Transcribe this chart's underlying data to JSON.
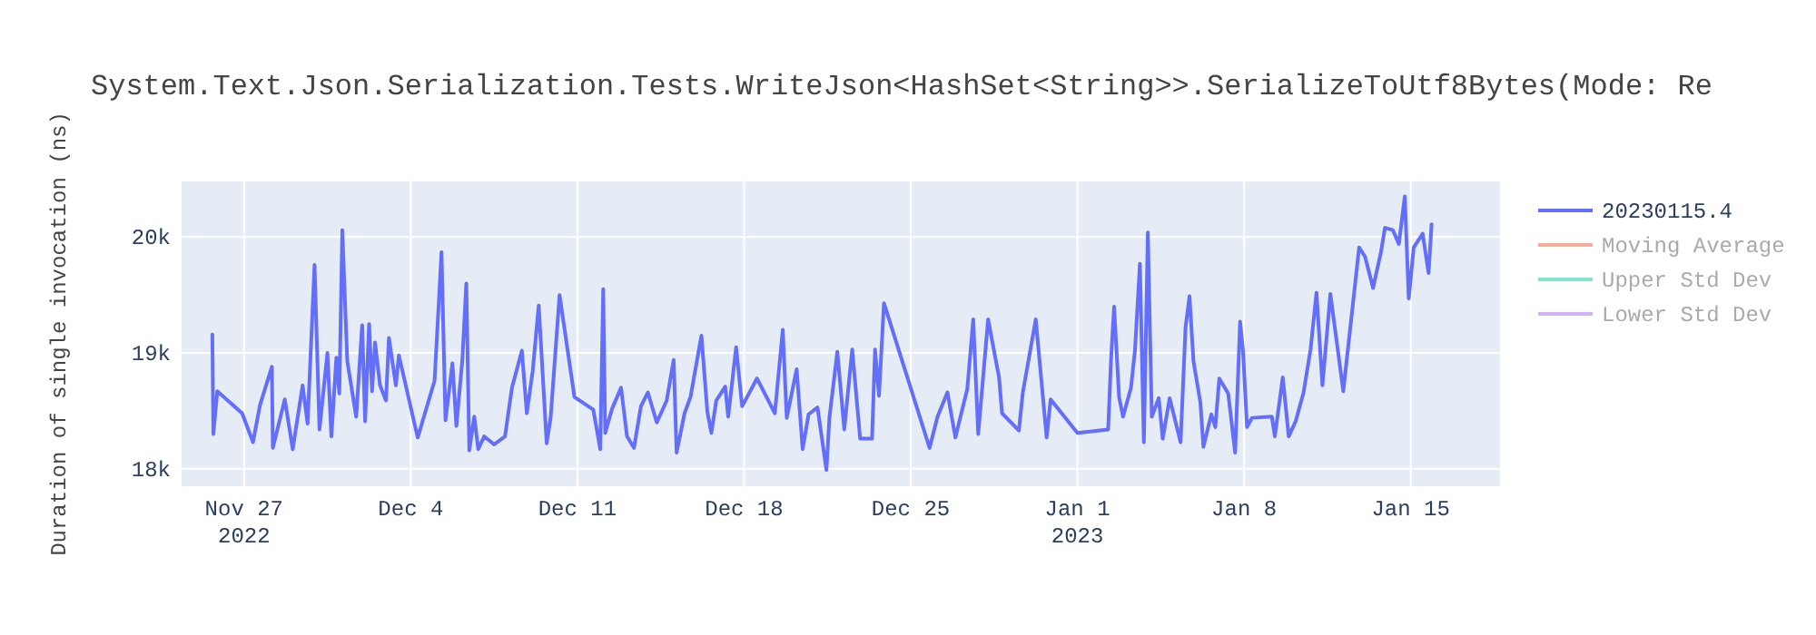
{
  "chart_data": {
    "type": "line",
    "title": "System.Text.Json.Serialization.Tests.WriteJson<HashSet<String>>.SerializeToUtf8Bytes(Mode: Re",
    "ylabel": "Duration of single invocation (ns)",
    "xlim": [
      "2022-11-24T09:00",
      "2023-01-18T18:00"
    ],
    "xticks": [
      {
        "value": "2022-11-27",
        "label": "Nov 27\n2022"
      },
      {
        "value": "2022-12-04",
        "label": "Dec 4"
      },
      {
        "value": "2022-12-11",
        "label": "Dec 11"
      },
      {
        "value": "2022-12-18",
        "label": "Dec 18"
      },
      {
        "value": "2022-12-25",
        "label": "Dec 25"
      },
      {
        "value": "2023-01-01",
        "label": "Jan 1\n2023"
      },
      {
        "value": "2023-01-08",
        "label": "Jan 8"
      },
      {
        "value": "2023-01-15",
        "label": "Jan 15"
      }
    ],
    "ylim": [
      17850,
      20480
    ],
    "yticks": [
      {
        "value": 18000,
        "label": "18k"
      },
      {
        "value": 19000,
        "label": "19k"
      },
      {
        "value": 20000,
        "label": "20k"
      }
    ],
    "grid": true,
    "legend": "right",
    "series": [
      {
        "name": "20230115.4",
        "color": "#636efa",
        "x": [
          "2022-11-25T16:00",
          "2022-11-25T17:00",
          "2022-11-25T21:00",
          "2022-11-26T22:00",
          "2022-11-27T09:00",
          "2022-11-27T16:00",
          "2022-11-28T04:00",
          "2022-11-28T05:00",
          "2022-11-28T17:00",
          "2022-11-29T01:00",
          "2022-11-29T11:00",
          "2022-11-29T16:00",
          "2022-11-29T23:00",
          "2022-11-30T04:00",
          "2022-11-30T12:00",
          "2022-11-30T16:00",
          "2022-11-30T21:00",
          "2022-12-01T00:00",
          "2022-12-01T03:00",
          "2022-12-01T08:00",
          "2022-12-01T17:00",
          "2022-12-01T23:00",
          "2022-12-02T02:00",
          "2022-12-02T06:00",
          "2022-12-02T09:00",
          "2022-12-02T12:00",
          "2022-12-02T17:00",
          "2022-12-02T23:00",
          "2022-12-03T02:00",
          "2022-12-03T09:00",
          "2022-12-03T12:00",
          "2022-12-04T07:00",
          "2022-12-05T00:00",
          "2022-12-05T07:00",
          "2022-12-05T11:00",
          "2022-12-05T18:00",
          "2022-12-05T22:00",
          "2022-12-06T04:00",
          "2022-12-06T08:00",
          "2022-12-06T11:00",
          "2022-12-06T16:00",
          "2022-12-06T20:00",
          "2022-12-07T02:00",
          "2022-12-07T12:00",
          "2022-12-07T23:00",
          "2022-12-08T06:00",
          "2022-12-08T16:00",
          "2022-12-08T21:00",
          "2022-12-09T03:00",
          "2022-12-09T09:00",
          "2022-12-09T17:00",
          "2022-12-09T21:00",
          "2022-12-10T06:00",
          "2022-12-10T21:00",
          "2022-12-11T16:00",
          "2022-12-11T23:00",
          "2022-12-12T02:00",
          "2022-12-12T04:00",
          "2022-12-12T11:00",
          "2022-12-12T20:00",
          "2022-12-13T02:00",
          "2022-12-13T09:00",
          "2022-12-13T16:00",
          "2022-12-13T23:00",
          "2022-12-14T08:00",
          "2022-12-14T18:00",
          "2022-12-15T01:00",
          "2022-12-15T04:00",
          "2022-12-15T12:00",
          "2022-12-15T18:00",
          "2022-12-16T05:00",
          "2022-12-16T11:00",
          "2022-12-16T15:00",
          "2022-12-16T20:00",
          "2022-12-17T05:00",
          "2022-12-17T08:00",
          "2022-12-17T16:00",
          "2022-12-17T22:00",
          "2022-12-18T13:00",
          "2022-12-19T07:00",
          "2022-12-19T15:00",
          "2022-12-19T19:00",
          "2022-12-20T05:00",
          "2022-12-20T11:00",
          "2022-12-20T17:00",
          "2022-12-21T02:00",
          "2022-12-21T11:00",
          "2022-12-21T14:00",
          "2022-12-21T22:00",
          "2022-12-22T05:00",
          "2022-12-22T13:00",
          "2022-12-22T21:00",
          "2022-12-23T09:00",
          "2022-12-23T12:00",
          "2022-12-23T16:00",
          "2022-12-23T21:00",
          "2022-12-25T19:00",
          "2022-12-26T03:00",
          "2022-12-26T13:00",
          "2022-12-26T21:00",
          "2022-12-27T09:00",
          "2022-12-27T15:00",
          "2022-12-27T20:00",
          "2022-12-28T06:00",
          "2022-12-28T17:00",
          "2022-12-28T20:00",
          "2022-12-29T13:00",
          "2022-12-29T17:00",
          "2022-12-30T06:00",
          "2022-12-30T17:00",
          "2022-12-30T21:00",
          "2023-01-01T00:00",
          "2023-01-02T07:00",
          "2023-01-02T10:00",
          "2023-01-02T13:00",
          "2023-01-02T18:00",
          "2023-01-02T22:00",
          "2023-01-03T06:00",
          "2023-01-03T10:00",
          "2023-01-03T15:00",
          "2023-01-03T19:00",
          "2023-01-03T23:00",
          "2023-01-04T03:00",
          "2023-01-04T10:00",
          "2023-01-04T14:00",
          "2023-01-04T21:00",
          "2023-01-05T08:00",
          "2023-01-05T13:00",
          "2023-01-05T17:00",
          "2023-01-05T21:00",
          "2023-01-06T04:00",
          "2023-01-06T07:00",
          "2023-01-06T15:00",
          "2023-01-06T19:00",
          "2023-01-06T23:00",
          "2023-01-07T08:00",
          "2023-01-07T15:00",
          "2023-01-07T20:00",
          "2023-01-07T23:00",
          "2023-01-08T03:00",
          "2023-01-08T08:00",
          "2023-01-09T04:00",
          "2023-01-09T07:00",
          "2023-01-09T15:00",
          "2023-01-09T21:00",
          "2023-01-10T04:00",
          "2023-01-10T12:00",
          "2023-01-10T19:00",
          "2023-01-11T01:00",
          "2023-01-11T07:00",
          "2023-01-11T15:00",
          "2023-01-12T04:00",
          "2023-01-12T20:00",
          "2023-01-13T02:00",
          "2023-01-13T10:00",
          "2023-01-13T18:00",
          "2023-01-13T22:00",
          "2023-01-14T06:00",
          "2023-01-14T12:00",
          "2023-01-14T18:00",
          "2023-01-14T22:00",
          "2023-01-15T03:00",
          "2023-01-15T12:00",
          "2023-01-15T18:00",
          "2023-01-15T21:00"
        ],
        "values": [
          19160,
          18300,
          18670,
          18480,
          18230,
          18550,
          18880,
          18180,
          18600,
          18170,
          18720,
          18390,
          19760,
          18340,
          19000,
          18280,
          18960,
          18650,
          20060,
          18930,
          18450,
          19240,
          18410,
          19250,
          18670,
          19090,
          18720,
          18590,
          19130,
          18720,
          18980,
          18270,
          18760,
          19870,
          18420,
          18910,
          18370,
          18940,
          19600,
          18160,
          18450,
          18170,
          18280,
          18210,
          18280,
          18700,
          19020,
          18480,
          18850,
          19410,
          18220,
          18440,
          19500,
          18620,
          18510,
          18170,
          19550,
          18310,
          18520,
          18700,
          18280,
          18180,
          18540,
          18660,
          18400,
          18590,
          18940,
          18140,
          18480,
          18620,
          19150,
          18490,
          18310,
          18590,
          18710,
          18450,
          19050,
          18540,
          18780,
          18480,
          19200,
          18440,
          18860,
          18170,
          18470,
          18530,
          17990,
          18440,
          19010,
          18340,
          19030,
          18260,
          18260,
          19030,
          18630,
          19430,
          18180,
          18450,
          18660,
          18270,
          18690,
          19290,
          18300,
          19290,
          18790,
          18480,
          18330,
          18660,
          19290,
          18270,
          18600,
          18310,
          18340,
          18960,
          19400,
          18620,
          18450,
          18700,
          19020,
          19770,
          18230,
          20040,
          18450,
          18610,
          18260,
          18610,
          18230,
          19220,
          19490,
          18930,
          18570,
          18190,
          18470,
          18360,
          18780,
          18650,
          18140,
          19270,
          19010,
          18360,
          18440,
          18450,
          18280,
          18790,
          18280,
          18410,
          18660,
          19030,
          19520,
          18720,
          19510,
          18670,
          19910,
          19830,
          19560,
          19870,
          20080,
          20060,
          19940,
          20350,
          19470,
          19910,
          20030,
          19690,
          20110
        ]
      },
      {
        "name": "Moving Average",
        "color": "#f7aa9d"
      },
      {
        "name": "Upper Std Dev",
        "color": "#80e5ca"
      },
      {
        "name": "Lower Std Dev",
        "color": "#d5b1fc"
      }
    ]
  }
}
